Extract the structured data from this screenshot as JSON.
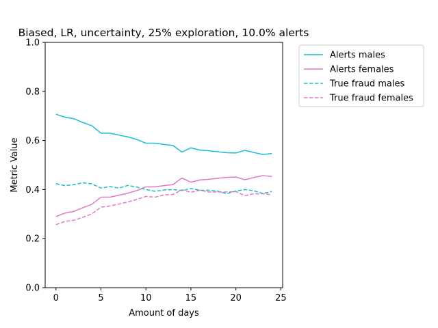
{
  "chart_data": {
    "type": "line",
    "title": "Biased, LR, uncertainty, 25% exploration, 10.0% alerts",
    "xlabel": "Amount of days",
    "ylabel": "Metric Value",
    "xlim": [
      -1.2,
      25.2
    ],
    "ylim": [
      0,
      1
    ],
    "xticks": [
      0,
      5,
      10,
      15,
      20,
      25
    ],
    "yticks": [
      0.0,
      0.2,
      0.4,
      0.6,
      0.8,
      1.0
    ],
    "ytick_labels": [
      "0.0",
      "0.2",
      "0.4",
      "0.6",
      "0.8",
      "1.0"
    ],
    "grid": false,
    "legend_position": "outside-right",
    "x": [
      0,
      1,
      2,
      3,
      4,
      5,
      6,
      7,
      8,
      9,
      10,
      11,
      12,
      13,
      14,
      15,
      16,
      17,
      18,
      19,
      20,
      21,
      22,
      23,
      24
    ],
    "series": [
      {
        "name": "Alerts males",
        "color": "#17becf",
        "style": "solid",
        "values": [
          0.707,
          0.695,
          0.689,
          0.673,
          0.66,
          0.63,
          0.63,
          0.622,
          0.615,
          0.604,
          0.589,
          0.589,
          0.584,
          0.58,
          0.553,
          0.57,
          0.561,
          0.558,
          0.554,
          0.55,
          0.549,
          0.56,
          0.551,
          0.543,
          0.547
        ]
      },
      {
        "name": "Alerts females",
        "color": "#e377c2",
        "style": "solid",
        "values": [
          0.29,
          0.304,
          0.311,
          0.326,
          0.34,
          0.369,
          0.369,
          0.377,
          0.385,
          0.396,
          0.411,
          0.411,
          0.416,
          0.42,
          0.447,
          0.43,
          0.439,
          0.442,
          0.446,
          0.45,
          0.451,
          0.44,
          0.449,
          0.457,
          0.453
        ]
      },
      {
        "name": "True fraud males",
        "color": "#17becf",
        "style": "dashed",
        "values": [
          0.424,
          0.416,
          0.42,
          0.428,
          0.423,
          0.406,
          0.412,
          0.406,
          0.417,
          0.41,
          0.4,
          0.393,
          0.398,
          0.4,
          0.396,
          0.404,
          0.397,
          0.397,
          0.393,
          0.383,
          0.394,
          0.4,
          0.395,
          0.384,
          0.392
        ]
      },
      {
        "name": "True fraud females",
        "color": "#e377c2",
        "style": "dashed",
        "values": [
          0.257,
          0.27,
          0.275,
          0.287,
          0.301,
          0.328,
          0.333,
          0.341,
          0.349,
          0.36,
          0.372,
          0.369,
          0.378,
          0.38,
          0.399,
          0.389,
          0.397,
          0.39,
          0.39,
          0.39,
          0.392,
          0.375,
          0.383,
          0.383,
          0.379
        ]
      }
    ]
  }
}
